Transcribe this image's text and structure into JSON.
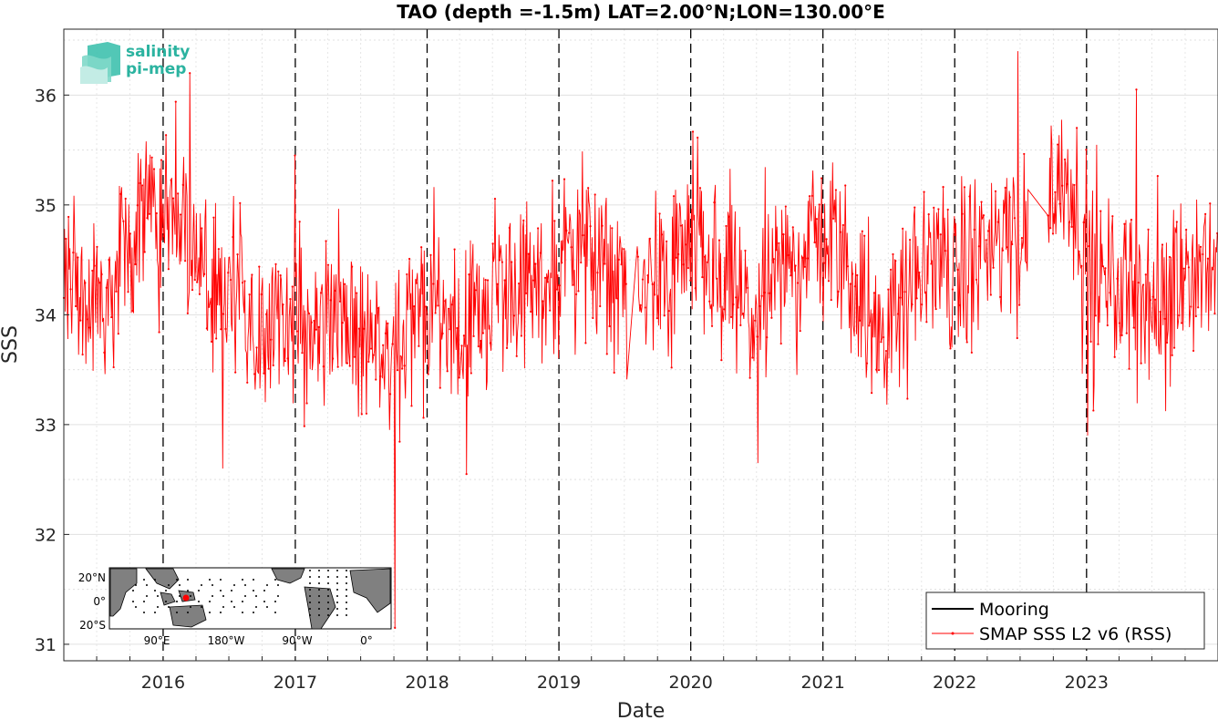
{
  "chart_data": {
    "type": "line",
    "title": "TAO (depth =-1.5m) LAT=2.00°N;LON=130.00°E",
    "xlabel": "Date",
    "ylabel": "SSS",
    "x_range": [
      "2015-04-01",
      "2023-12-31"
    ],
    "ylim": [
      30.85,
      36.6
    ],
    "x_ticks": [
      "2016",
      "2017",
      "2018",
      "2019",
      "2020",
      "2021",
      "2022",
      "2023"
    ],
    "y_ticks": [
      "31",
      "32",
      "33",
      "34",
      "35",
      "36"
    ],
    "grid": true,
    "year_boundary_lines": [
      "2016-01-01",
      "2017-01-01",
      "2018-01-01",
      "2019-01-01",
      "2020-01-01",
      "2021-01-01",
      "2022-01-01",
      "2023-01-01"
    ],
    "legend": {
      "placement": "bottom-right",
      "entries": [
        "Mooring",
        "SMAP SSS L2 v6 (RSS)"
      ]
    },
    "series": [
      {
        "name": "Mooring",
        "color": "#000000",
        "points": []
      },
      {
        "name": "SMAP SSS L2 v6 (RSS)",
        "color": "#ff0000",
        "points": [
          [
            "2015-04-01",
            34.1
          ],
          [
            "2015-05-01",
            34.5
          ],
          [
            "2015-06-01",
            34.0
          ],
          [
            "2015-07-01",
            34.2
          ],
          [
            "2015-08-01",
            34.1
          ],
          [
            "2015-09-01",
            34.4
          ],
          [
            "2015-10-01",
            34.6
          ],
          [
            "2015-11-01",
            34.8
          ],
          [
            "2015-12-01",
            35.0
          ],
          [
            "2016-01-01",
            35.0
          ],
          [
            "2016-02-01",
            34.9
          ],
          [
            "2016-03-01",
            34.8
          ],
          [
            "2016-04-01",
            34.6
          ],
          [
            "2016-05-01",
            34.3
          ],
          [
            "2016-06-01",
            34.0
          ],
          [
            "2016-07-01",
            34.1
          ],
          [
            "2016-08-01",
            34.2
          ],
          [
            "2016-09-01",
            34.0
          ],
          [
            "2016-10-01",
            33.9
          ],
          [
            "2016-11-01",
            34.0
          ],
          [
            "2016-12-01",
            34.0
          ],
          [
            "2017-01-01",
            34.0
          ],
          [
            "2017-02-01",
            33.9
          ],
          [
            "2017-03-01",
            33.9
          ],
          [
            "2017-04-01",
            34.1
          ],
          [
            "2017-05-01",
            33.9
          ],
          [
            "2017-06-01",
            33.8
          ],
          [
            "2017-07-01",
            33.8
          ],
          [
            "2017-08-01",
            33.7
          ],
          [
            "2017-09-01",
            33.8
          ],
          [
            "2017-10-01",
            33.6
          ],
          [
            "2017-11-01",
            33.9
          ],
          [
            "2017-12-01",
            34.0
          ],
          [
            "2018-01-01",
            34.0
          ],
          [
            "2018-02-01",
            34.1
          ],
          [
            "2018-03-01",
            33.9
          ],
          [
            "2018-04-01",
            33.8
          ],
          [
            "2018-05-01",
            34.0
          ],
          [
            "2018-06-01",
            34.1
          ],
          [
            "2018-07-01",
            34.2
          ],
          [
            "2018-08-01",
            34.1
          ],
          [
            "2018-09-01",
            34.2
          ],
          [
            "2018-10-01",
            34.3
          ],
          [
            "2018-11-01",
            34.3
          ],
          [
            "2018-12-01",
            34.4
          ],
          [
            "2019-01-01",
            34.5
          ],
          [
            "2019-02-01",
            34.7
          ],
          [
            "2019-03-01",
            34.8
          ],
          [
            "2019-04-01",
            34.6
          ],
          [
            "2019-05-01",
            34.4
          ],
          [
            "2019-06-01",
            34.3
          ],
          [
            "2019-07-01",
            34.1
          ],
          [
            "2019-08-01",
            34.0
          ],
          [
            "2019-09-01",
            34.2
          ],
          [
            "2019-10-01",
            34.3
          ],
          [
            "2019-11-01",
            34.4
          ],
          [
            "2019-12-01",
            34.5
          ],
          [
            "2020-01-01",
            34.6
          ],
          [
            "2020-02-01",
            34.5
          ],
          [
            "2020-03-01",
            34.4
          ],
          [
            "2020-04-01",
            34.3
          ],
          [
            "2020-05-01",
            34.2
          ],
          [
            "2020-06-01",
            34.0
          ],
          [
            "2020-07-01",
            34.0
          ],
          [
            "2020-08-01",
            34.1
          ],
          [
            "2020-09-01",
            34.3
          ],
          [
            "2020-10-01",
            34.5
          ],
          [
            "2020-11-01",
            34.6
          ],
          [
            "2020-12-01",
            34.7
          ],
          [
            "2021-01-01",
            34.6
          ],
          [
            "2021-02-01",
            34.7
          ],
          [
            "2021-03-01",
            34.5
          ],
          [
            "2021-04-01",
            34.3
          ],
          [
            "2021-05-01",
            34.1
          ],
          [
            "2021-06-01",
            33.9
          ],
          [
            "2021-07-01",
            33.9
          ],
          [
            "2021-08-01",
            34.0
          ],
          [
            "2021-09-01",
            34.2
          ],
          [
            "2021-10-01",
            34.4
          ],
          [
            "2021-11-01",
            34.5
          ],
          [
            "2021-12-01",
            34.5
          ],
          [
            "2022-01-01",
            34.3
          ],
          [
            "2022-02-01",
            34.4
          ],
          [
            "2022-03-01",
            34.6
          ],
          [
            "2022-04-01",
            34.7
          ],
          [
            "2022-05-01",
            34.6
          ],
          [
            "2022-06-01",
            34.8
          ],
          [
            "2022-07-01",
            34.6
          ],
          [
            "2022-08-01",
            34.9
          ],
          [
            "2022-09-01",
            35.0
          ],
          [
            "2022-10-01",
            35.2
          ],
          [
            "2022-11-01",
            35.3
          ],
          [
            "2022-12-01",
            35.1
          ],
          [
            "2023-01-01",
            34.6
          ],
          [
            "2023-02-01",
            34.3
          ],
          [
            "2023-03-01",
            34.2
          ],
          [
            "2023-04-01",
            34.1
          ],
          [
            "2023-05-01",
            34.3
          ],
          [
            "2023-06-01",
            34.2
          ],
          [
            "2023-07-01",
            34.0
          ],
          [
            "2023-08-01",
            34.1
          ],
          [
            "2023-09-01",
            34.3
          ],
          [
            "2023-10-01",
            34.4
          ],
          [
            "2023-11-01",
            34.4
          ],
          [
            "2023-12-01",
            34.5
          ]
        ]
      }
    ],
    "spikes": [
      [
        "2016-03-15",
        36.2
      ],
      [
        "2016-06-15",
        32.6
      ],
      [
        "2017-10-05",
        31.15
      ],
      [
        "2018-04-20",
        32.55
      ],
      [
        "2020-07-05",
        32.65
      ],
      [
        "2022-06-25",
        36.4
      ],
      [
        "2023-01-05",
        32.9
      ],
      [
        "2023-05-20",
        36.05
      ]
    ]
  },
  "logo": {
    "line1": "salinity",
    "line2": "pi-mep"
  },
  "inset_map": {
    "lat_labels": [
      "20°N",
      "0°",
      "20°S"
    ],
    "lon_labels": [
      "90°E",
      "180°W",
      "90°W",
      "0°"
    ]
  },
  "colors": {
    "series_red": "#ff0000",
    "dashed_line": "#000000",
    "logo_teal": "#2bb3a0"
  }
}
